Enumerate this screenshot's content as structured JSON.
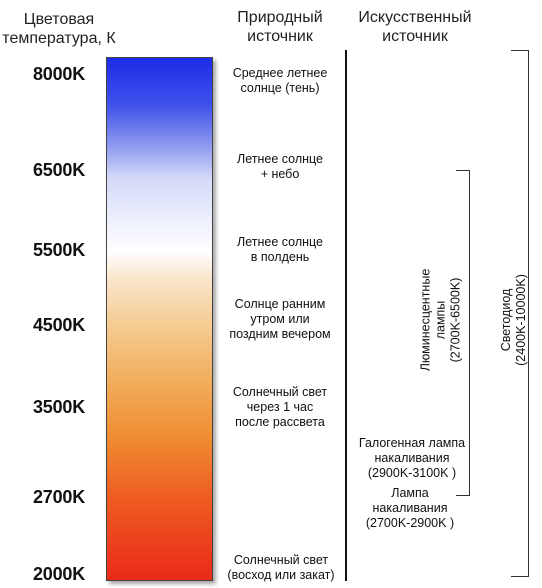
{
  "headers": {
    "temperature": [
      "Цветовая",
      "температура, К"
    ],
    "natural": [
      "Природный",
      "источник"
    ],
    "artificial": [
      "Искусственный",
      "источник"
    ]
  },
  "temperatures": [
    "8000K",
    "6500K",
    "5500K",
    "4500K",
    "3500K",
    "2700K",
    "2000K"
  ],
  "natural_sources": [
    [
      "Среднее летнее",
      "солнце (тень)"
    ],
    [
      "Летнее солнце",
      "+ небо"
    ],
    [
      "Летнее солнце",
      "в полдень"
    ],
    [
      "Солнце ранним",
      "утром или",
      "поздним вечером"
    ],
    [
      "Солнечный свет",
      "через 1 час",
      "после рассвета"
    ],
    [
      "Солнечный свет",
      "(восход или закат)"
    ]
  ],
  "artificial_sources": {
    "halogen": [
      "Галогенная лампа",
      "накаливания",
      "(2900K-3100K )"
    ],
    "incandescent": [
      "Лампа",
      "накаливания",
      "(2700K-2900K )"
    ],
    "fluorescent": [
      "Люминесцентные",
      "лампы",
      "(2700K-6500K)"
    ],
    "led": [
      "Светодиод",
      "(2400K-10000K)"
    ]
  },
  "colors": {
    "cold": "#1c2be8",
    "neutral": "#ffffff",
    "warm": "#f08f34",
    "hot": "#ea2a1a"
  }
}
